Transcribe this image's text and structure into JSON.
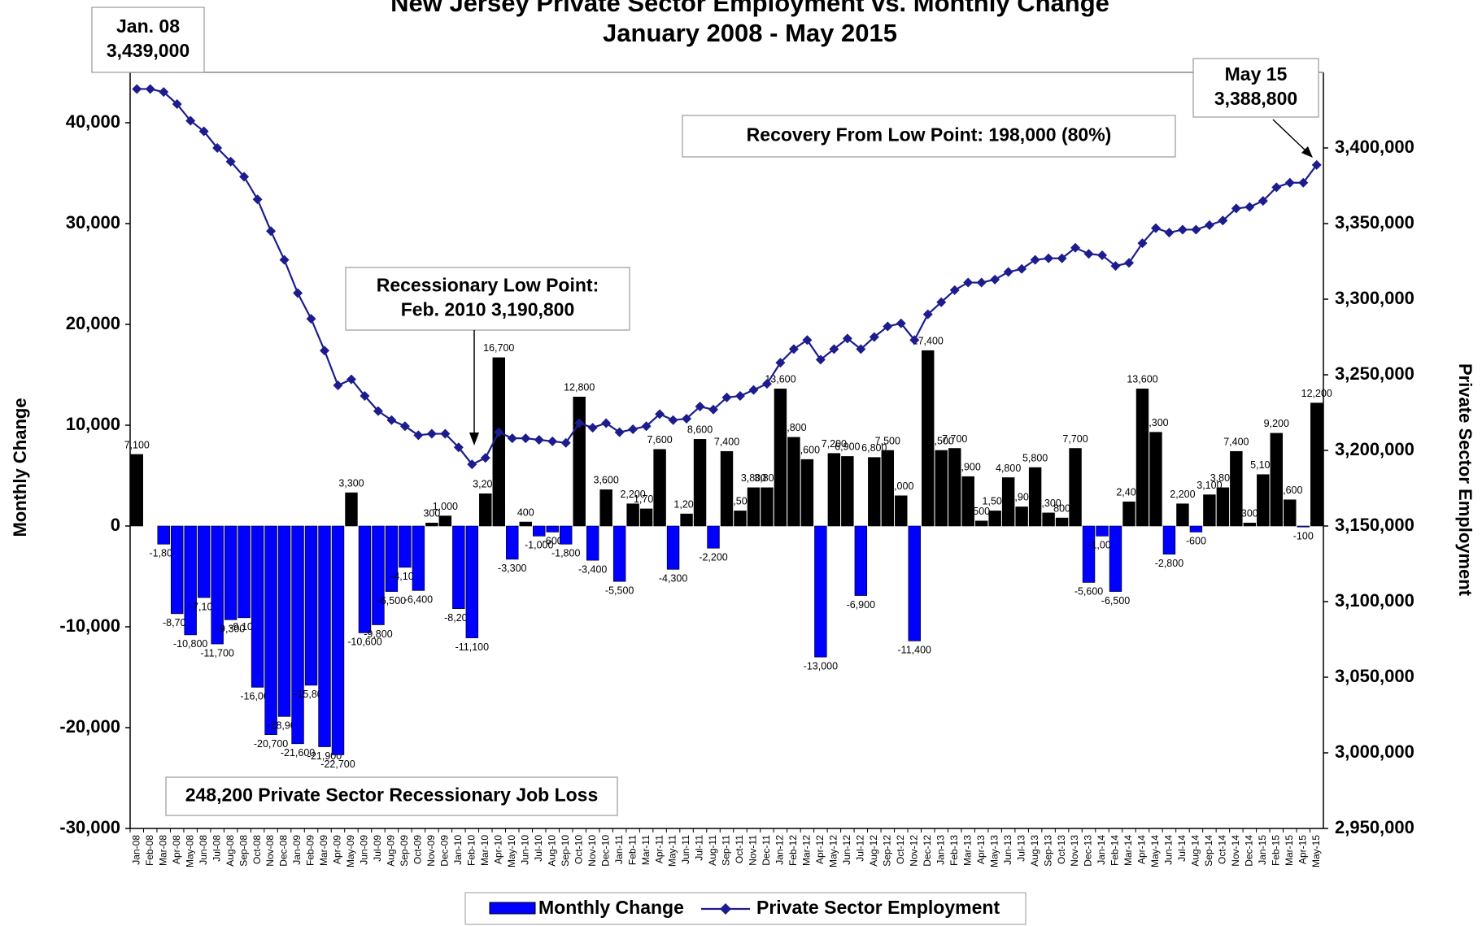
{
  "chart_data": {
    "type": "bar_line",
    "title": [
      "New Jersey Private Sector Employment vs. Monthly Change",
      "January 2008 - May 2015"
    ],
    "y_label": "Monthly Change",
    "y2_label": "Private Sector Employment",
    "categories": [
      "Jan-08",
      "Feb-08",
      "Mar-08",
      "Apr-08",
      "May-08",
      "Jun-08",
      "Jul-08",
      "Aug-08",
      "Sep-08",
      "Oct-08",
      "Nov-08",
      "Dec-08",
      "Jan-09",
      "Feb-09",
      "Mar-09",
      "Apr-09",
      "May-09",
      "Jun-09",
      "Jul-09",
      "Aug-09",
      "Sep-09",
      "Oct-09",
      "Nov-09",
      "Dec-09",
      "Jan-10",
      "Feb-10",
      "Mar-10",
      "Apr-10",
      "May-10",
      "Jun-10",
      "Jul-10",
      "Aug-10",
      "Sep-10",
      "Oct-10",
      "Nov-10",
      "Dec-10",
      "Jan-11",
      "Feb-11",
      "Mar-11",
      "Apr-11",
      "May-11",
      "Jun-11",
      "Jul-11",
      "Aug-11",
      "Sep-11",
      "Oct-11",
      "Nov-11",
      "Dec-11",
      "Jan-12",
      "Feb-12",
      "Mar-12",
      "Apr-12",
      "May-12",
      "Jun-12",
      "Jul-12",
      "Aug-12",
      "Sep-12",
      "Oct-12",
      "Nov-12",
      "Dec-12",
      "Jan-13",
      "Feb-13",
      "Mar-13",
      "Apr-13",
      "May-13",
      "Jun-13",
      "Jul-13",
      "Aug-13",
      "Sep-13",
      "Oct-13",
      "Nov-13",
      "Dec-13",
      "Jan-14",
      "Feb-14",
      "Mar-14",
      "Apr-14",
      "May-14",
      "Jun-14",
      "Jul-14",
      "Aug-14",
      "Sep-14",
      "Oct-14",
      "Nov-14",
      "Dec-14",
      "Jan-15",
      "Feb-15",
      "Mar-15",
      "Apr-15",
      "May-15"
    ],
    "series": [
      {
        "name": "Monthly Change",
        "type": "bar",
        "color": "#000000",
        "negative_color": "#0000ff",
        "values": [
          7100,
          0,
          -1800,
          -8700,
          -10800,
          -7100,
          -11700,
          -9300,
          -9100,
          -16000,
          -20700,
          -18900,
          -21600,
          -15800,
          -21900,
          -22700,
          3300,
          -10600,
          -9800,
          -6500,
          -4100,
          -6400,
          300,
          1000,
          -8200,
          -11100,
          3200,
          16700,
          -3300,
          400,
          -1000,
          -600,
          -1800,
          12800,
          -3400,
          3600,
          -5500,
          2200,
          1700,
          7600,
          -4300,
          1200,
          8600,
          -2200,
          7400,
          1500,
          3800,
          3800,
          13600,
          8800,
          6600,
          -13000,
          7200,
          6900,
          -6900,
          6800,
          7500,
          3000,
          -11400,
          17400,
          7500,
          7700,
          4900,
          500,
          1500,
          4800,
          1900,
          5800,
          1300,
          800,
          7700,
          -5600,
          -1000,
          -6500,
          2400,
          13600,
          9300,
          -2800,
          2200,
          -600,
          3100,
          3800,
          7400,
          300,
          5100,
          9200,
          2600,
          -100,
          12200
        ],
        "value_labels": [
          "7,100",
          null,
          "-1,800",
          "-8,700",
          "-10,800",
          "-7,100",
          "-11,700",
          "-9,300",
          "-9,100",
          "-16,000",
          "-20,700",
          "-18,900",
          "-21,600",
          "-15,800",
          "-21,900",
          "-22,700",
          "3,300",
          "-10,600",
          "-9,800",
          "-6,500",
          "-4,100",
          "-6,400",
          "300",
          "1,000",
          "-8,200",
          "-11,100",
          "3,200",
          "16,700",
          "-3,300",
          "400",
          "-1,000",
          "-600",
          "-1,800",
          "12,800",
          "-3,400",
          "3,600",
          "-5,500",
          "2,200",
          "1,700",
          "7,600",
          "-4,300",
          "1,200",
          "8,600",
          "-2,200",
          "7,400",
          "1,500",
          "3,800",
          "3,800",
          "13,600",
          "8,800",
          "6,600",
          "-13,000",
          "7,200",
          "6,900",
          "-6,900",
          "6,800",
          "7,500",
          "3,000",
          "-11,400",
          "17,400",
          "7,500",
          "7,700",
          "4,900",
          "500",
          "1,500",
          "4,800",
          "1,900",
          "5,800",
          "1,300",
          "800",
          "7,700",
          "-5,600",
          "-1,000",
          "-6,500",
          "2,400",
          "13,600",
          "9,300",
          "-2,800",
          "2,200",
          "-600",
          "3,100",
          "3,800",
          "7,400",
          "300",
          "5,100",
          "9,200",
          "2,600",
          "-100",
          "12,200"
        ]
      },
      {
        "name": "Private Sector Employment",
        "type": "line",
        "axis": "y2",
        "color": "#1c1c8f",
        "values": [
          3439000,
          3439000,
          3437000,
          3429000,
          3418000,
          3411000,
          3400000,
          3391000,
          3381000,
          3366000,
          3345000,
          3326000,
          3304000,
          3287000,
          3266000,
          3243000,
          3247000,
          3236000,
          3226000,
          3220000,
          3216000,
          3210000,
          3211000,
          3211000,
          3202000,
          3190800,
          3195000,
          3212000,
          3208000,
          3208000,
          3207000,
          3206000,
          3205000,
          3218000,
          3215000,
          3218000,
          3212000,
          3214000,
          3216000,
          3224000,
          3220000,
          3221000,
          3229000,
          3227000,
          3235000,
          3236000,
          3240000,
          3244000,
          3258000,
          3267000,
          3273000,
          3260000,
          3267000,
          3274000,
          3267000,
          3275000,
          3282000,
          3284000,
          3273000,
          3290000,
          3298000,
          3306000,
          3311000,
          3311000,
          3313000,
          3318000,
          3320000,
          3326000,
          3327000,
          3327000,
          3334000,
          3330000,
          3329000,
          3322000,
          3324000,
          3337000,
          3347000,
          3344000,
          3346000,
          3346000,
          3349000,
          3352000,
          3360000,
          3361000,
          3365000,
          3374000,
          3377000,
          3377000,
          3388800
        ]
      }
    ],
    "ylim": [
      -30000,
      45000
    ],
    "yticks": [
      {
        "value": -30000,
        "label": "-30,000"
      },
      {
        "value": -20000,
        "label": "-20,000"
      },
      {
        "value": -10000,
        "label": "-10,000"
      },
      0,
      {
        "value": 10000,
        "label": "10,000"
      },
      {
        "value": 20000,
        "label": "20,000"
      },
      {
        "value": 30000,
        "label": "30,000"
      },
      {
        "value": 40000,
        "label": "40,000"
      }
    ],
    "y2lim": [
      2950000,
      3450000
    ],
    "y2ticks": [
      {
        "value": 2950000,
        "label": "2,950,000"
      },
      {
        "value": 3000000,
        "label": "3,000,000"
      },
      {
        "value": 3050000,
        "label": "3,050,000"
      },
      {
        "value": 3100000,
        "label": "3,100,000"
      },
      {
        "value": 3150000,
        "label": "3,150,000"
      },
      {
        "value": 3200000,
        "label": "3,200,000"
      },
      {
        "value": 3250000,
        "label": "3,250,000"
      },
      {
        "value": 3300000,
        "label": "3,300,000"
      },
      {
        "value": 3350000,
        "label": "3,350,000"
      },
      {
        "value": 3400000,
        "label": "3,400,000"
      }
    ],
    "annotations": [
      {
        "lines": [
          "Jan. 08",
          "3,439,000"
        ]
      },
      {
        "lines": [
          "May 15",
          "3,388,800"
        ]
      },
      {
        "lines": [
          "Recessionary Low Point:",
          "Feb. 2010   3,190,800"
        ]
      },
      {
        "lines": [
          "Recovery From Low Point: 198,000 (80%)"
        ]
      },
      {
        "lines": [
          "248,200 Private Sector Recessionary Job Loss"
        ]
      }
    ],
    "legend": "bottom"
  }
}
